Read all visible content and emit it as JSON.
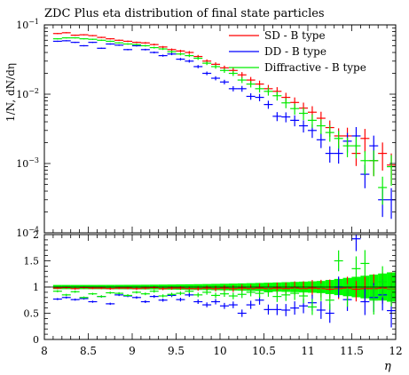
{
  "chart_data": {
    "type": "scatter",
    "title": "ZDC Plus eta distribution of final state particles",
    "xlabel": "η",
    "ylabel": "1/N, dN/dη",
    "xlim": [
      8,
      12
    ],
    "ylim": [
      0.0001,
      0.1
    ],
    "log_y": true,
    "x_ticks": [
      "8",
      "8.5",
      "9",
      "9.5",
      "10",
      "10.5",
      "11",
      "11.5",
      "12"
    ],
    "y_ticks": [
      {
        "mantissa": "10",
        "exp": "−4"
      },
      {
        "mantissa": "10",
        "exp": "−3"
      },
      {
        "mantissa": "10",
        "exp": "−2"
      },
      {
        "mantissa": "10",
        "exp": "−1"
      }
    ],
    "legend_position": "top-right",
    "x": [
      8.15,
      8.25,
      8.35,
      8.45,
      8.55,
      8.65,
      8.75,
      8.85,
      8.95,
      9.05,
      9.15,
      9.25,
      9.35,
      9.45,
      9.55,
      9.65,
      9.75,
      9.85,
      9.95,
      10.05,
      10.15,
      10.25,
      10.35,
      10.45,
      10.55,
      10.65,
      10.75,
      10.85,
      10.95,
      11.05,
      11.15,
      11.25,
      11.35,
      11.45,
      11.55,
      11.65,
      11.75,
      11.85,
      11.95
    ],
    "series": [
      {
        "name": "SD - B type",
        "color": "#ff0000",
        "values": [
          0.075,
          0.077,
          0.071,
          0.072,
          0.07,
          0.066,
          0.063,
          0.06,
          0.058,
          0.056,
          0.055,
          0.052,
          0.048,
          0.044,
          0.042,
          0.04,
          0.035,
          0.03,
          0.027,
          0.024,
          0.022,
          0.019,
          0.016,
          0.014,
          0.012,
          0.011,
          0.009,
          0.0076,
          0.0063,
          0.0055,
          0.0045,
          0.0033,
          0.0025,
          0.0025,
          0.0014,
          0.0023,
          0.0011,
          0.0014,
          0.00095
        ]
      },
      {
        "name": "DD - B type",
        "color": "#0000ff",
        "values": [
          0.058,
          0.059,
          0.056,
          0.05,
          0.056,
          0.046,
          0.053,
          0.051,
          0.044,
          0.05,
          0.044,
          0.04,
          0.036,
          0.038,
          0.032,
          0.03,
          0.025,
          0.02,
          0.017,
          0.015,
          0.012,
          0.012,
          0.0093,
          0.009,
          0.0071,
          0.0048,
          0.0047,
          0.0042,
          0.0035,
          0.003,
          0.0022,
          0.0014,
          0.0014,
          0.0021,
          0.0025,
          0.0007,
          0.0018,
          0.0003,
          0.0003
        ]
      },
      {
        "name": "Diffractive - B type",
        "color": "#00ee00",
        "values": [
          0.063,
          0.065,
          0.065,
          0.063,
          0.062,
          0.06,
          0.058,
          0.055,
          0.053,
          0.052,
          0.05,
          0.047,
          0.045,
          0.041,
          0.038,
          0.036,
          0.033,
          0.028,
          0.025,
          0.022,
          0.02,
          0.016,
          0.014,
          0.012,
          0.011,
          0.0095,
          0.0075,
          0.0062,
          0.0053,
          0.0042,
          0.0035,
          0.0028,
          0.0023,
          0.0018,
          0.0018,
          0.0011,
          0.0011,
          0.00045,
          0.0009
        ]
      }
    ],
    "ratio": {
      "ylim": [
        0,
        2
      ],
      "y_ticks": [
        "0",
        "0.5",
        "1",
        "1.5",
        "2"
      ],
      "band_color": "#00ff00",
      "series": [
        {
          "name": "SD - B type",
          "color": "#ff0000",
          "values": [
            0.98,
            0.99,
            0.97,
            0.99,
            0.98,
            0.98,
            0.97,
            0.98,
            0.98,
            0.97,
            0.98,
            0.99,
            0.97,
            0.98,
            0.98,
            0.97,
            0.97,
            0.98,
            0.97,
            0.98,
            0.97,
            0.98,
            0.97,
            0.98,
            0.97,
            0.98,
            0.97,
            0.98,
            0.97,
            0.98,
            0.97,
            0.96,
            0.97,
            0.98,
            0.96,
            0.97,
            0.97,
            0.98,
            0.96
          ]
        },
        {
          "name": "DD - B type",
          "color": "#0000ff",
          "values": [
            0.77,
            0.8,
            0.76,
            0.78,
            0.72,
            0.82,
            0.68,
            0.85,
            0.83,
            0.8,
            0.72,
            0.82,
            0.75,
            0.84,
            0.76,
            0.85,
            0.72,
            0.66,
            0.72,
            0.64,
            0.66,
            0.5,
            0.66,
            0.75,
            0.57,
            0.57,
            0.56,
            0.6,
            0.64,
            0.7,
            0.56,
            0.5,
            1.0,
            0.76,
            1.92,
            0.72,
            0.8,
            0.85,
            0.55
          ]
        },
        {
          "name": "Diffractive - B type",
          "color": "#00ee00",
          "values": [
            0.92,
            0.85,
            0.91,
            0.8,
            0.87,
            0.82,
            0.89,
            0.88,
            0.84,
            0.9,
            0.87,
            0.92,
            0.83,
            0.86,
            0.88,
            0.92,
            0.85,
            0.9,
            0.84,
            0.87,
            0.83,
            0.86,
            0.9,
            0.88,
            0.91,
            0.82,
            0.85,
            0.88,
            0.83,
            0.62,
            0.9,
            0.75,
            1.5,
            0.84,
            1.35,
            1.45,
            0.75,
            1.1,
            0.95
          ]
        }
      ]
    }
  }
}
